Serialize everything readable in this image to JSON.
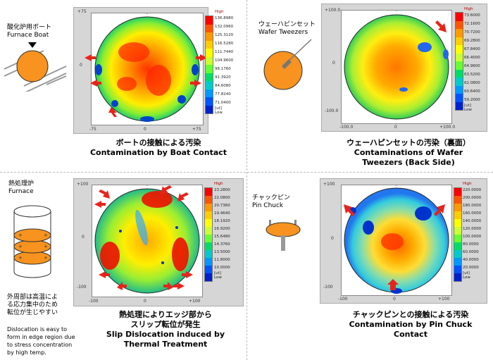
{
  "scale_colors": [
    "#ff0000",
    "#ff5500",
    "#ff9900",
    "#ffcc00",
    "#ffff00",
    "#ccff33",
    "#66ff33",
    "#00dd66",
    "#00cccc",
    "#0099ff",
    "#0055ff",
    "#0022cc"
  ],
  "panel1": {
    "label_jp": "酸化炉用ボート",
    "label_en": "Furnace Boat",
    "axis": {
      "top": "+75",
      "left": "0",
      "bottom_left": "-75",
      "bottom_mid": "0",
      "bottom_right": "+75"
    },
    "scale": {
      "high": "High",
      "low": "Low",
      "unit": "[ut]",
      "values": [
        "136.8980",
        "132.0960",
        "125.3120",
        "116.5280",
        "111.7440",
        "104.9600",
        "98.1760",
        "91.3920",
        "84.6080",
        "77.8240",
        "71.0400"
      ]
    },
    "caption_jp": "ボートの接触による汚染",
    "caption_en": "Contamination by Boat Contact"
  },
  "panel2": {
    "label_jp": "ウェーハピンセット",
    "label_en": "Wafer Tweezers",
    "axis": {
      "top": "+100.0",
      "left": "0",
      "bottom_left": "-100.0",
      "bottom_mid": "0",
      "bottom_right": "+100.0",
      "lower_left": "-100.0"
    },
    "scale": {
      "high": "High",
      "low": "Low",
      "unit": "[ut]",
      "values": [
        "73.6000",
        "72.1600",
        "70.7200",
        "69.2800",
        "67.8400",
        "66.4000",
        "64.9600",
        "63.5200",
        "62.0800",
        "60.6400",
        "59.2000"
      ]
    },
    "caption_jp": "ウェーハピンセットの汚染（裏面）",
    "caption_en1": "Contaminations of Wafer",
    "caption_en2": "Tweezers (Back Side)"
  },
  "panel3": {
    "label_jp": "熱処理炉",
    "label_en": "Furnace",
    "axis": {
      "top": "+100",
      "left": "0",
      "bottom_left": "-100",
      "bottom_mid": "0",
      "bottom_right": "+100",
      "lower_left": "-100"
    },
    "scale": {
      "high": "High",
      "low": "Low",
      "unit": "[ut]",
      "values": [
        "23.2800",
        "22.0800",
        "20.7360",
        "19.4640",
        "18.1920",
        "16.9200",
        "15.6480",
        "14.3760",
        "13.5000",
        "11.8000",
        "10.0000"
      ]
    },
    "caption_jp1": "熱処理によりエッジ部から",
    "caption_jp2": "スリップ転位が発生",
    "caption_en1": "Slip Dislocation induced by",
    "caption_en2": "Thermal Treatment",
    "note_jp": [
      "外周部は高温によ",
      "る応力集中のため",
      "転位が生じやすい"
    ],
    "note_en": [
      "Dislocation is easy to",
      "form in edge region due",
      "to stress concentration",
      "by high temp."
    ]
  },
  "panel4": {
    "label_jp": "チャックピン",
    "label_en": "Pin Chuck",
    "axis": {
      "top": "+100",
      "left": "0",
      "bottom_left": "-100",
      "bottom_mid": "0",
      "bottom_right": "+100",
      "lower_left": "-100"
    },
    "scale": {
      "high": "High",
      "low": "Low",
      "unit": "[ut]",
      "values": [
        "220.0000",
        "200.0000",
        "180.0000",
        "160.0000",
        "140.0000",
        "120.0000",
        "100.0000",
        "80.0000",
        "60.0000",
        "40.0000",
        "20.0000"
      ]
    },
    "caption_jp": "チャックピンとの接触による汚染",
    "caption_en": "Contamination by Pin Chuck Contact"
  }
}
